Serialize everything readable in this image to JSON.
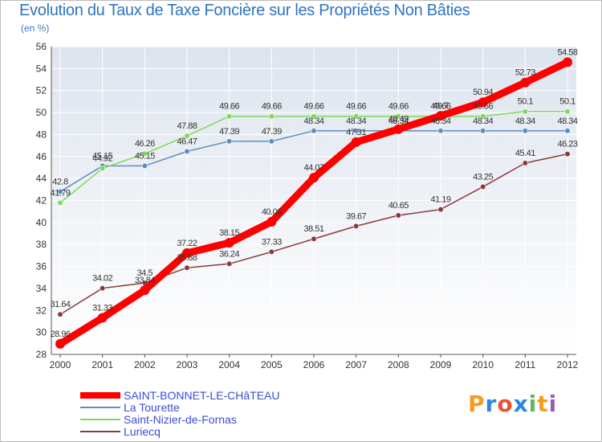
{
  "header": {
    "title": "Evolution du Taux de Taxe Foncière sur les Propriétés Non Bâties",
    "unit": "(en %)"
  },
  "brand": {
    "letters": [
      "P",
      "r",
      "o",
      "x",
      "i",
      "t",
      "i"
    ],
    "colors": [
      "#f39c1f",
      "#2e86de",
      "#e8542f",
      "#2e86de",
      "#5cb85c",
      "#f39c1f",
      "#9b59b6"
    ]
  },
  "chart_data": {
    "type": "line",
    "title": "Evolution du Taux de Taxe Foncière sur les Propriétés Non Bâties",
    "ylabel": "(en %)",
    "xlabel": "",
    "x": [
      "2000",
      "2001",
      "2002",
      "2003",
      "2004",
      "2005",
      "2006",
      "2007",
      "2008",
      "2009",
      "2010",
      "2011",
      "2012"
    ],
    "ylim": [
      28,
      56
    ],
    "yticks": [
      28,
      30,
      32,
      34,
      36,
      38,
      40,
      42,
      44,
      46,
      48,
      50,
      52,
      54,
      56
    ],
    "grid": true,
    "legend": "bottom-left",
    "series": [
      {
        "name": "SAINT-BONNET-LE-CHâTEAU",
        "color": "#ff0000",
        "values": [
          28.96,
          31.33,
          33.84,
          37.22,
          38.15,
          40.06,
          44.07,
          47.31,
          48.49,
          49.7,
          50.94,
          52.73,
          54.58
        ],
        "labels": [
          "28.96",
          "31.33",
          "33.84",
          "37.22",
          "38.15",
          "40.06",
          "44.07",
          "47.31",
          "48.49",
          "49.7",
          "50.94",
          "52.73",
          "54.58"
        ]
      },
      {
        "name": "La Tourette",
        "color": "#5b8fc4",
        "values": [
          42.8,
          45.15,
          45.15,
          46.47,
          47.39,
          47.39,
          48.34,
          48.34,
          48.34,
          48.34,
          48.34,
          48.34,
          48.34
        ],
        "labels": [
          "42.8",
          "45.15",
          "45.15",
          "46.47",
          "47.39",
          "47.39",
          "48.34",
          "48.34",
          "48.34",
          "48.34",
          "48.34",
          "48.34",
          "48.34"
        ]
      },
      {
        "name": "Saint-Nizier-de-Fornas",
        "color": "#7ed957",
        "values": [
          41.79,
          44.92,
          46.26,
          47.88,
          49.66,
          49.66,
          49.66,
          49.66,
          49.66,
          49.66,
          49.66,
          50.1,
          50.1
        ],
        "labels": [
          "41.79",
          "44.92",
          "46.26",
          "47.88",
          "49.66",
          "49.66",
          "49.66",
          "49.66",
          "49.66",
          "49.66",
          "49.66",
          "50.1",
          "50.1"
        ]
      },
      {
        "name": "Luriecq",
        "color": "#8b3a3a",
        "values": [
          31.64,
          34.02,
          34.5,
          35.88,
          36.24,
          37.33,
          38.51,
          39.67,
          40.65,
          41.19,
          43.25,
          45.41,
          46.23
        ],
        "labels": [
          "31.64",
          "34.02",
          "34.5",
          "35.88",
          "36.24",
          "37.33",
          "38.51",
          "39.67",
          "40.65",
          "41.19",
          "43.25",
          "45.41",
          "46.23"
        ]
      }
    ]
  }
}
